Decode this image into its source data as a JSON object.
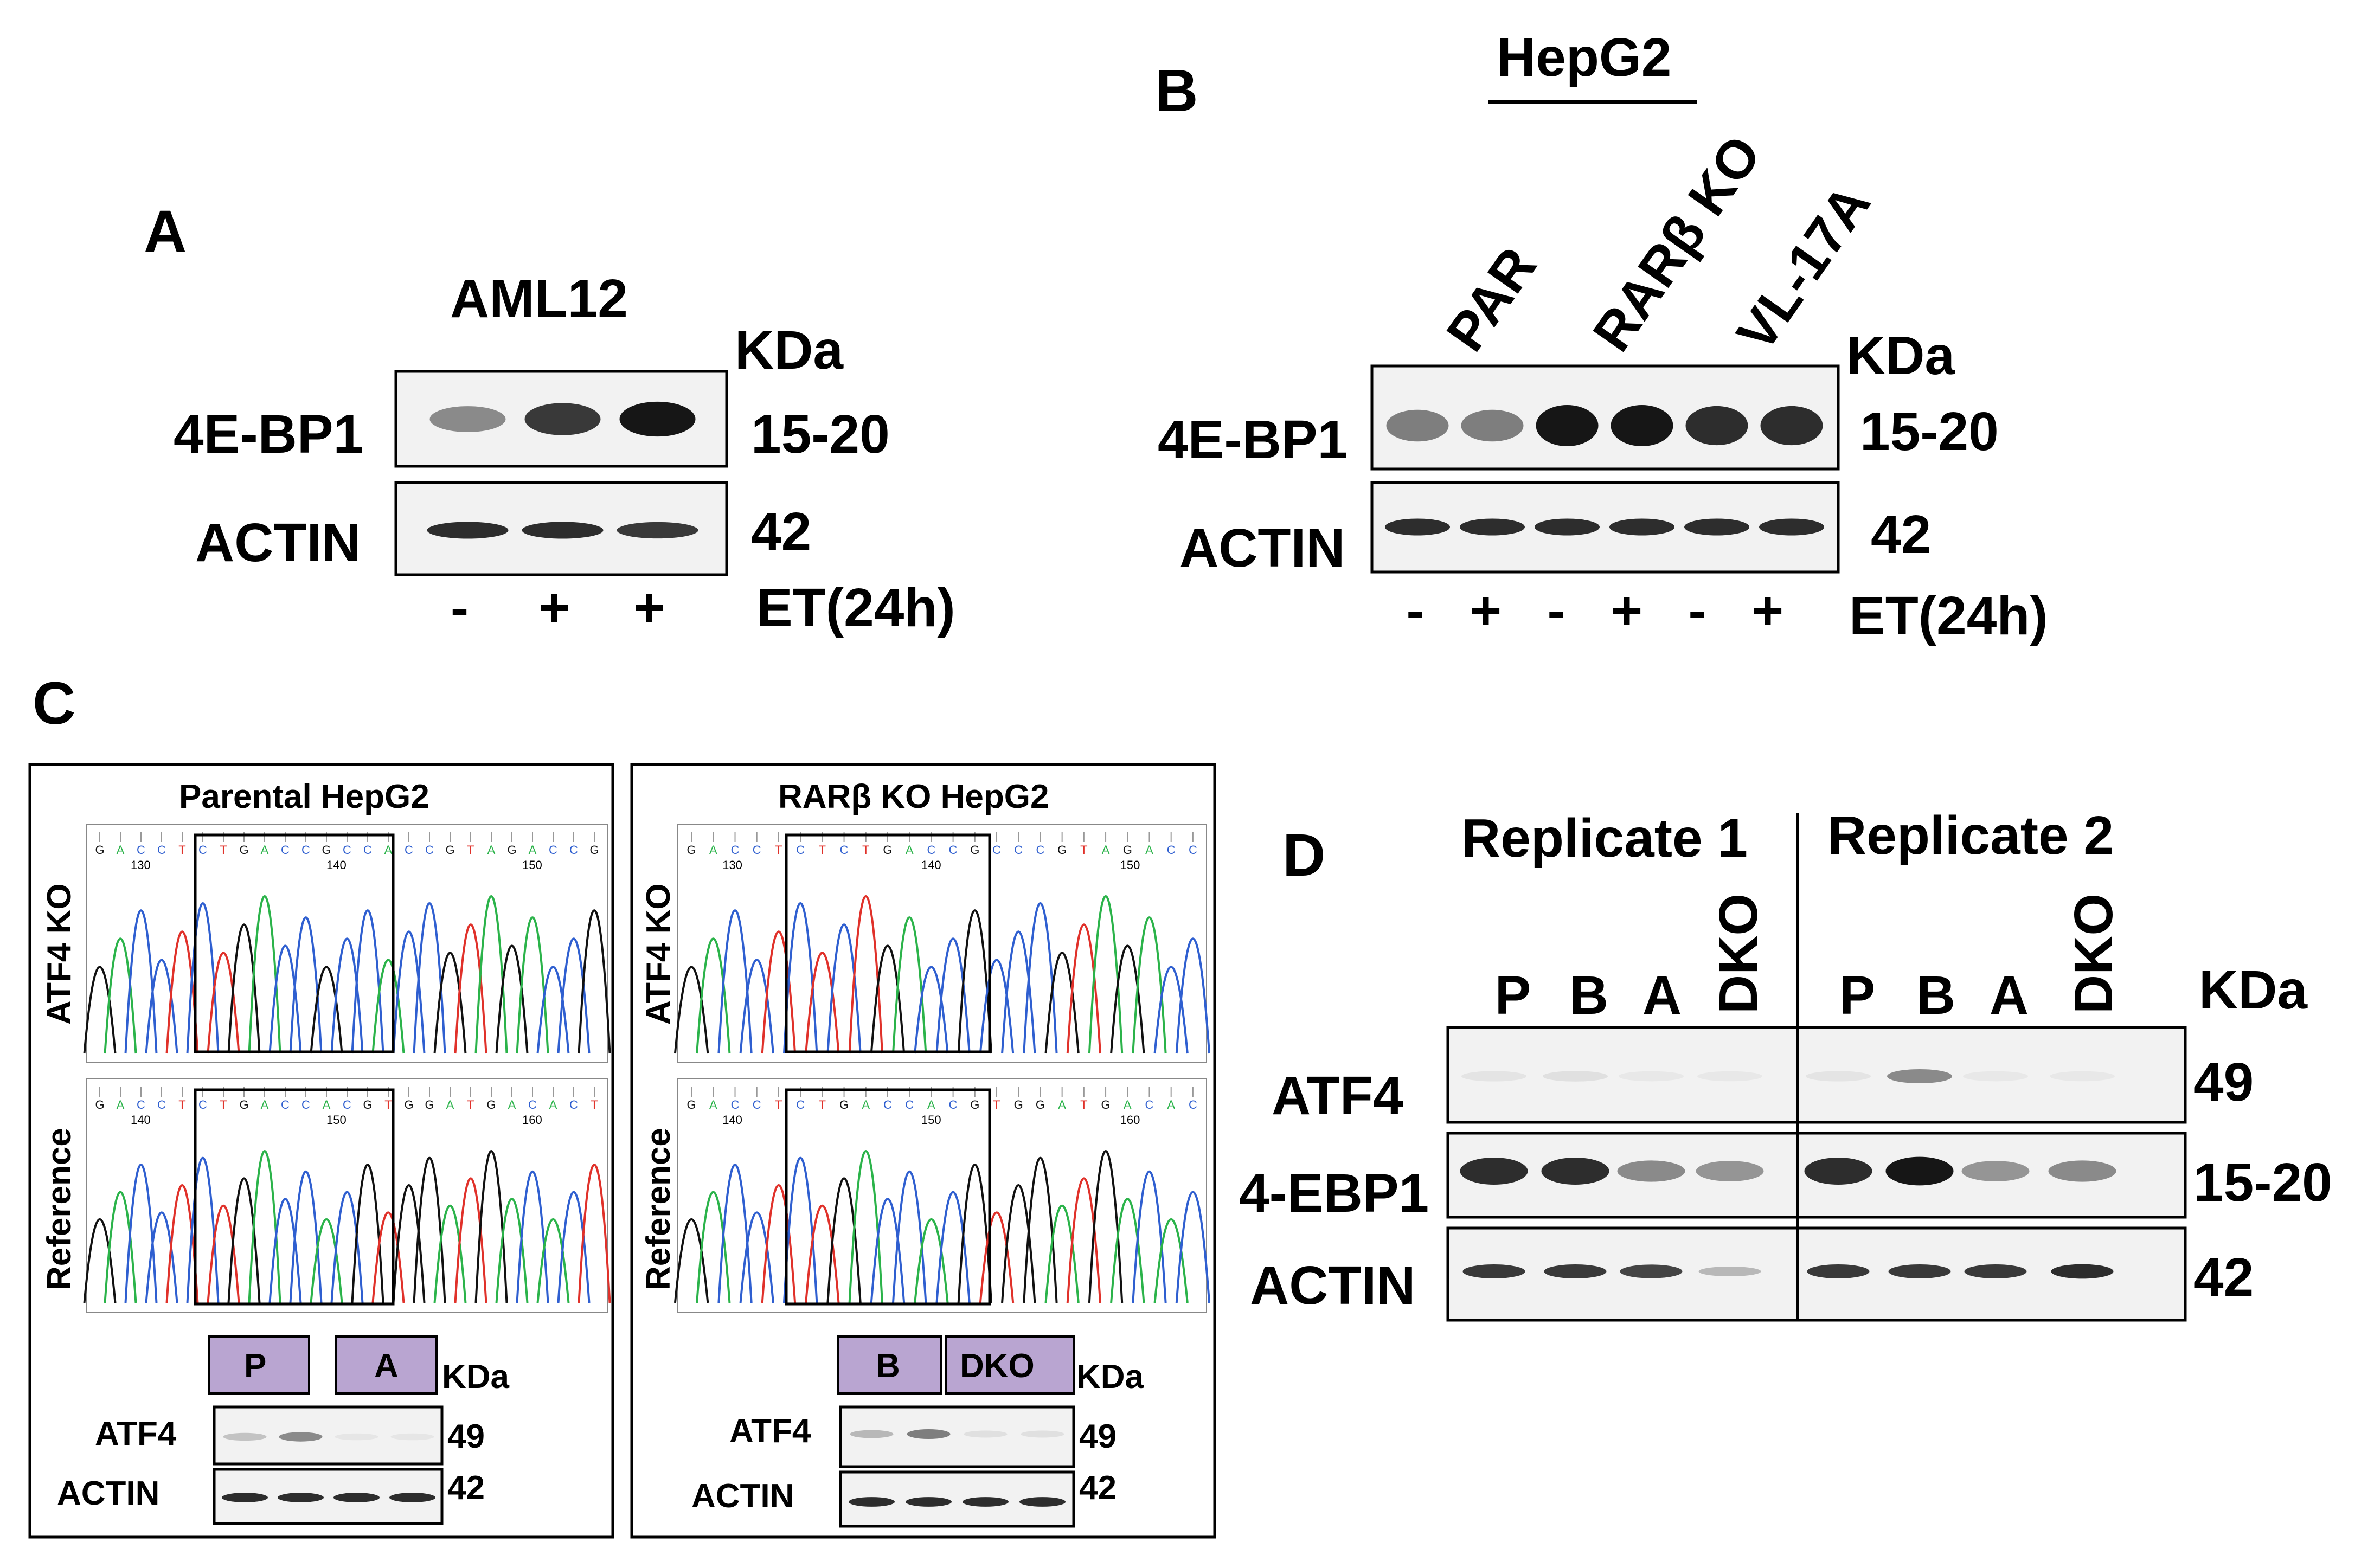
{
  "panels": {
    "A": {
      "letter": "A",
      "cell_line": "AML12",
      "kda_label": "KDa",
      "rows": [
        {
          "protein": "4E-BP1",
          "kda": "15-20",
          "band_intensity": [
            0.45,
            0.8,
            0.95
          ]
        },
        {
          "protein": "ACTIN",
          "kda": "42",
          "band_intensity": [
            0.85,
            0.85,
            0.8
          ]
        }
      ],
      "treatment": [
        "-",
        "+",
        "+"
      ],
      "treatment_label": "ET(24h)"
    },
    "B": {
      "letter": "B",
      "group_label": "HepG2",
      "lane_groups": [
        "PAR",
        "RARβ KO",
        "VL-17A"
      ],
      "kda_label": "KDa",
      "rows": [
        {
          "protein": "4E-BP1",
          "kda": "15-20",
          "band_intensity": [
            0.5,
            0.5,
            0.95,
            0.95,
            0.85,
            0.85
          ]
        },
        {
          "protein": "ACTIN",
          "kda": "42",
          "band_intensity": [
            0.85,
            0.85,
            0.85,
            0.85,
            0.85,
            0.85
          ]
        }
      ],
      "treatment": [
        "-",
        "+",
        "-",
        "+",
        "-",
        "+"
      ],
      "treatment_label": "ET(24h)"
    },
    "C": {
      "letter": "C",
      "boxes": [
        {
          "title": "Parental HepG2",
          "track_labels": [
            "ATF4 KO",
            "Reference"
          ],
          "seq_top": [
            "G",
            "A",
            "C",
            "C",
            "T",
            "C",
            "T",
            "G",
            "A",
            "C",
            "C",
            "G",
            "C",
            "C",
            "A",
            "C",
            "C",
            "G",
            "T",
            "A",
            "G",
            "A",
            "C",
            "C",
            "G"
          ],
          "seq_ref": [
            "G",
            "A",
            "C",
            "C",
            "T",
            "C",
            "T",
            "G",
            "A",
            "C",
            "C",
            "A",
            "C",
            "G",
            "T",
            "G",
            "G",
            "A",
            "T",
            "G",
            "A",
            "C",
            "A",
            "C",
            "T"
          ],
          "pos_top": [
            "130",
            "140",
            "150"
          ],
          "pos_ref": [
            "140",
            "150",
            "160"
          ],
          "lanes": [
            "P",
            "A"
          ],
          "kda_label": "KDa",
          "rows": [
            {
              "protein": "ATF4",
              "kda": "49",
              "band_intensity": [
                0.2,
                0.45,
                0.05,
                0.05
              ]
            },
            {
              "protein": "ACTIN",
              "kda": "42",
              "band_intensity": [
                0.85,
                0.85,
                0.85,
                0.85
              ]
            }
          ]
        },
        {
          "title": "RARβ KO HepG2",
          "track_labels": [
            "ATF4 KO",
            "Reference"
          ],
          "seq_top": [
            "G",
            "A",
            "C",
            "C",
            "T",
            "C",
            "T",
            "C",
            "T",
            "G",
            "A",
            "C",
            "C",
            "G",
            "C",
            "C",
            "C",
            "G",
            "T",
            "A",
            "G",
            "A",
            "C",
            "C"
          ],
          "seq_ref": [
            "G",
            "A",
            "C",
            "C",
            "T",
            "C",
            "T",
            "G",
            "A",
            "C",
            "C",
            "A",
            "C",
            "G",
            "T",
            "G",
            "G",
            "A",
            "T",
            "G",
            "A",
            "C",
            "A",
            "C"
          ],
          "pos_top": [
            "130",
            "140",
            "150"
          ],
          "pos_ref": [
            "140",
            "150",
            "160"
          ],
          "lanes": [
            "B",
            "DKO"
          ],
          "kda_label": "KDa",
          "rows": [
            {
              "protein": "ATF4",
              "kda": "49",
              "band_intensity": [
                0.25,
                0.5,
                0.08,
                0.08
              ]
            },
            {
              "protein": "ACTIN",
              "kda": "42",
              "band_intensity": [
                0.85,
                0.85,
                0.85,
                0.85
              ]
            }
          ]
        }
      ]
    },
    "D": {
      "letter": "D",
      "replicates": [
        "Replicate 1",
        "Replicate 2"
      ],
      "lanes": [
        "P",
        "B",
        "A",
        "DKO",
        "P",
        "B",
        "A",
        "DKO"
      ],
      "kda_label": "KDa",
      "rows": [
        {
          "protein": "ATF4",
          "kda": "49",
          "band_intensity": [
            0.06,
            0.08,
            0.04,
            0.03,
            0.06,
            0.45,
            0.04,
            0.03
          ]
        },
        {
          "protein": "4-EBP1",
          "kda": "15-20",
          "band_intensity": [
            0.85,
            0.85,
            0.45,
            0.4,
            0.85,
            0.95,
            0.4,
            0.45
          ]
        },
        {
          "protein": "ACTIN",
          "kda": "42",
          "band_intensity": [
            0.8,
            0.8,
            0.75,
            0.25,
            0.8,
            0.8,
            0.8,
            0.85
          ]
        }
      ]
    }
  },
  "colors": {
    "lane_box_fill": "#b9a5d1",
    "trace_A": "#2bb34a",
    "trace_C": "#2f5fd0",
    "trace_G": "#111111",
    "trace_T": "#e0312a"
  }
}
